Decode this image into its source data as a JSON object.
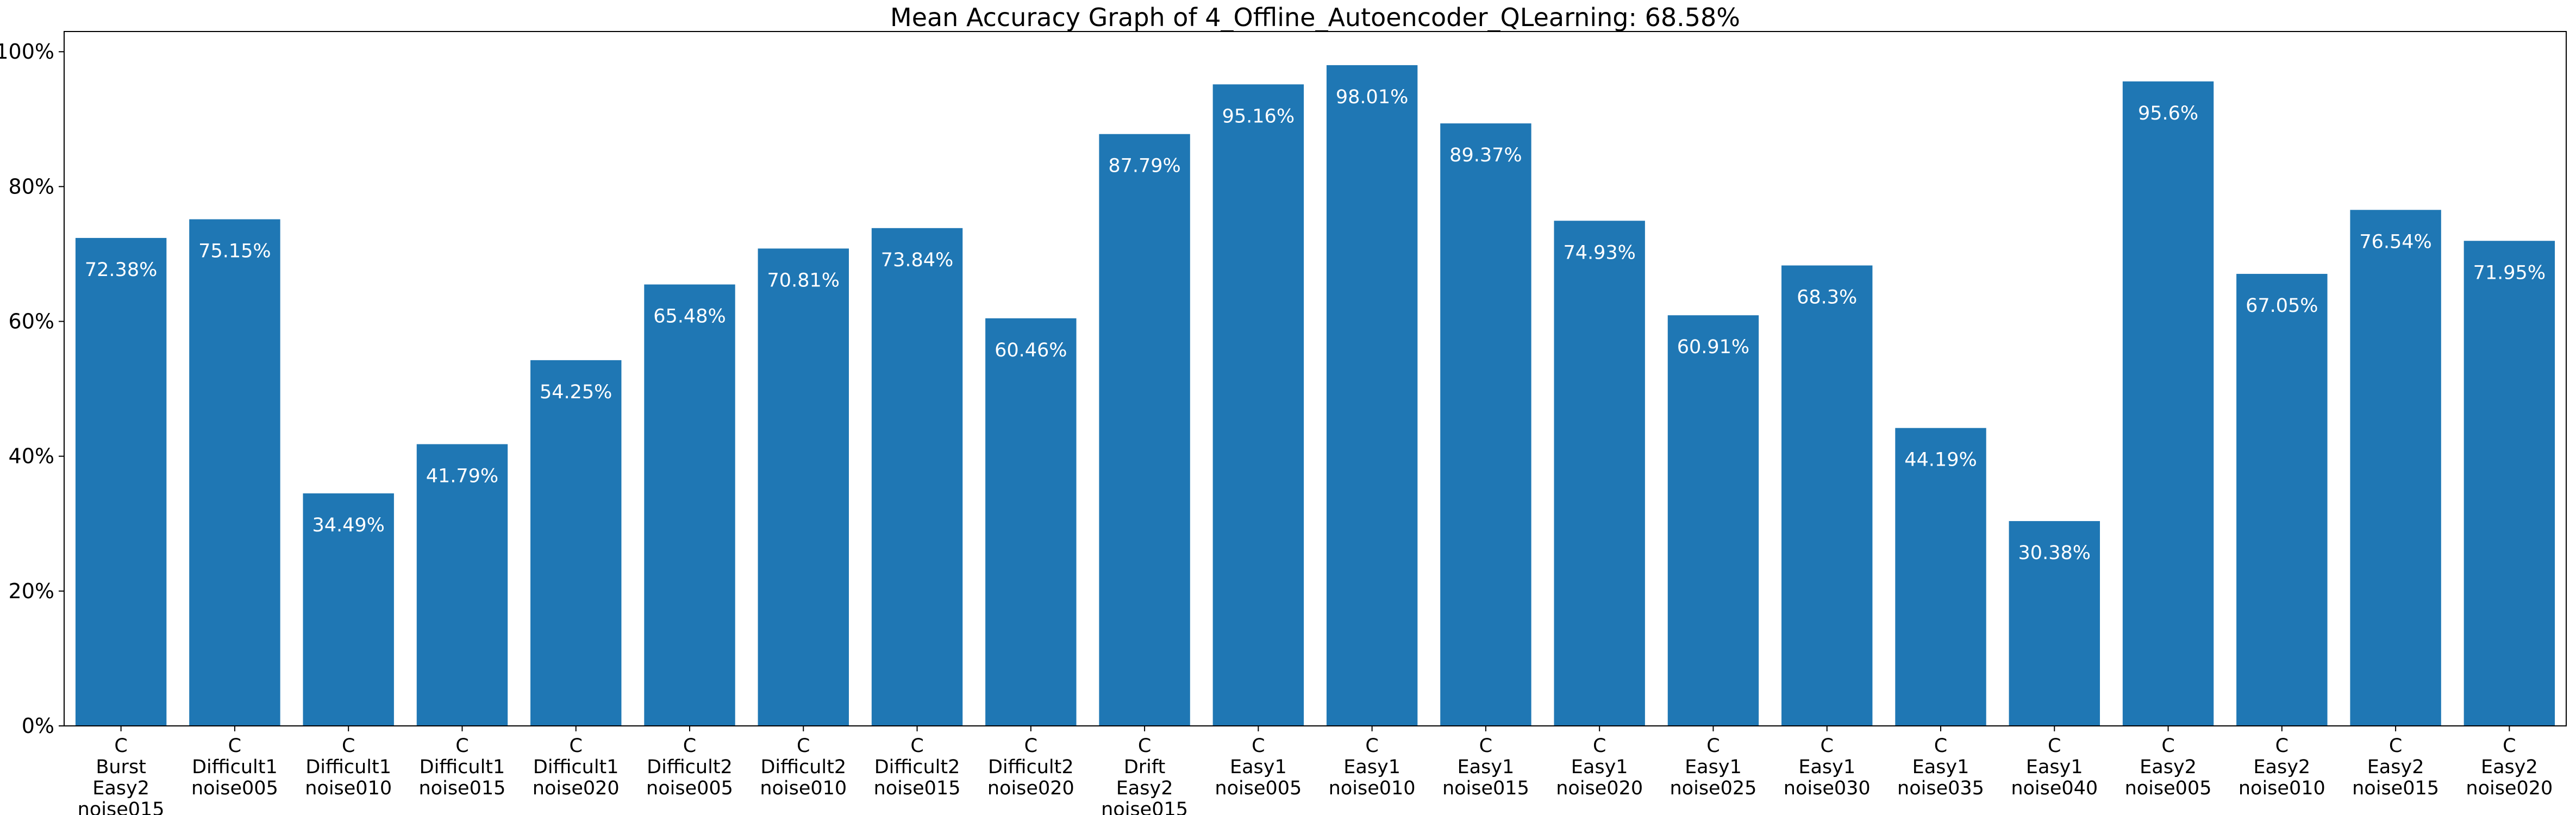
{
  "chart_data": {
    "type": "bar",
    "title": "Mean Accuracy Graph of 4_Offline_Autoencoder_QLearning: 68.58%",
    "xlabel": "",
    "ylabel": "",
    "ylim": [
      0,
      103
    ],
    "yticks": [
      0,
      20,
      40,
      60,
      80,
      100
    ],
    "ytick_labels": [
      "0%",
      "20%",
      "40%",
      "60%",
      "80%",
      "100%"
    ],
    "grid": false,
    "bar_color": "#1f77b4",
    "label_color": "#ffffff",
    "categories": [
      "C\nBurst\nEasy2\nnoise015",
      "C\nDifficult1\nnoise005",
      "C\nDifficult1\nnoise010",
      "C\nDifficult1\nnoise015",
      "C\nDifficult1\nnoise020",
      "C\nDifficult2\nnoise005",
      "C\nDifficult2\nnoise010",
      "C\nDifficult2\nnoise015",
      "C\nDifficult2\nnoise020",
      "C\nDrift\nEasy2\nnoise015",
      "C\nEasy1\nnoise005",
      "C\nEasy1\nnoise010",
      "C\nEasy1\nnoise015",
      "C\nEasy1\nnoise020",
      "C\nEasy1\nnoise025",
      "C\nEasy1\nnoise030",
      "C\nEasy1\nnoise035",
      "C\nEasy1\nnoise040",
      "C\nEasy2\nnoise005",
      "C\nEasy2\nnoise010",
      "C\nEasy2\nnoise015",
      "C\nEasy2\nnoise020"
    ],
    "values": [
      72.38,
      75.15,
      34.49,
      41.79,
      54.25,
      65.48,
      70.81,
      73.84,
      60.46,
      87.79,
      95.16,
      98.01,
      89.37,
      74.93,
      60.91,
      68.3,
      44.19,
      30.38,
      95.6,
      67.05,
      76.54,
      71.95
    ],
    "value_labels": [
      "72.38%",
      "75.15%",
      "34.49%",
      "41.79%",
      "54.25%",
      "65.48%",
      "70.81%",
      "73.84%",
      "60.46%",
      "87.79%",
      "95.16%",
      "98.01%",
      "89.37%",
      "74.93%",
      "60.91%",
      "68.3%",
      "44.19%",
      "30.38%",
      "95.6%",
      "67.05%",
      "76.54%",
      "71.95%"
    ]
  }
}
